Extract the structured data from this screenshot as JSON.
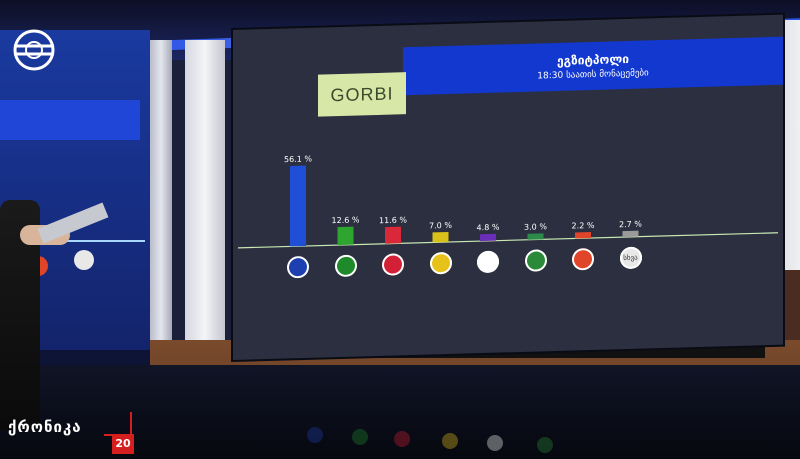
{
  "channel": {
    "logo_text": "GORBI",
    "title": "ეგზიტპოლი",
    "subtitle": "18:30 საათის მონაცემები",
    "brand_mark": "ქრონიკა",
    "brand_number": "20"
  },
  "chart_data": {
    "type": "bar",
    "categories": [
      "party-1",
      "party-2",
      "party-3",
      "party-4",
      "party-5",
      "party-6",
      "party-7",
      "სხვა"
    ],
    "values": [
      56.1,
      12.6,
      11.6,
      7.0,
      4.8,
      3.0,
      2.2,
      2.7
    ],
    "value_labels": [
      "56.1 %",
      "12.6 %",
      "11.6 %",
      "7.0 %",
      "4.8 %",
      "3.0 %",
      "2.2 %",
      "2.7 %"
    ],
    "bar_colors": [
      "#1f4fd6",
      "#2ea52e",
      "#d8283a",
      "#d8c21a",
      "#6a2fb8",
      "#2e8a4a",
      "#e0452a",
      "#9a9a9a"
    ],
    "icon_colors": [
      "#1d3fb0",
      "#1f8a2a",
      "#d42036",
      "#e6c21a",
      "#ffffff",
      "#2b8a3a",
      "#e0452a",
      "#e8e8e8"
    ],
    "icon_text": [
      "",
      "",
      "",
      "",
      "",
      "",
      "",
      "სხვა"
    ],
    "ylim": [
      0,
      60
    ],
    "title": "ეგზიტპოლი",
    "xlabel": "",
    "ylabel": ""
  }
}
